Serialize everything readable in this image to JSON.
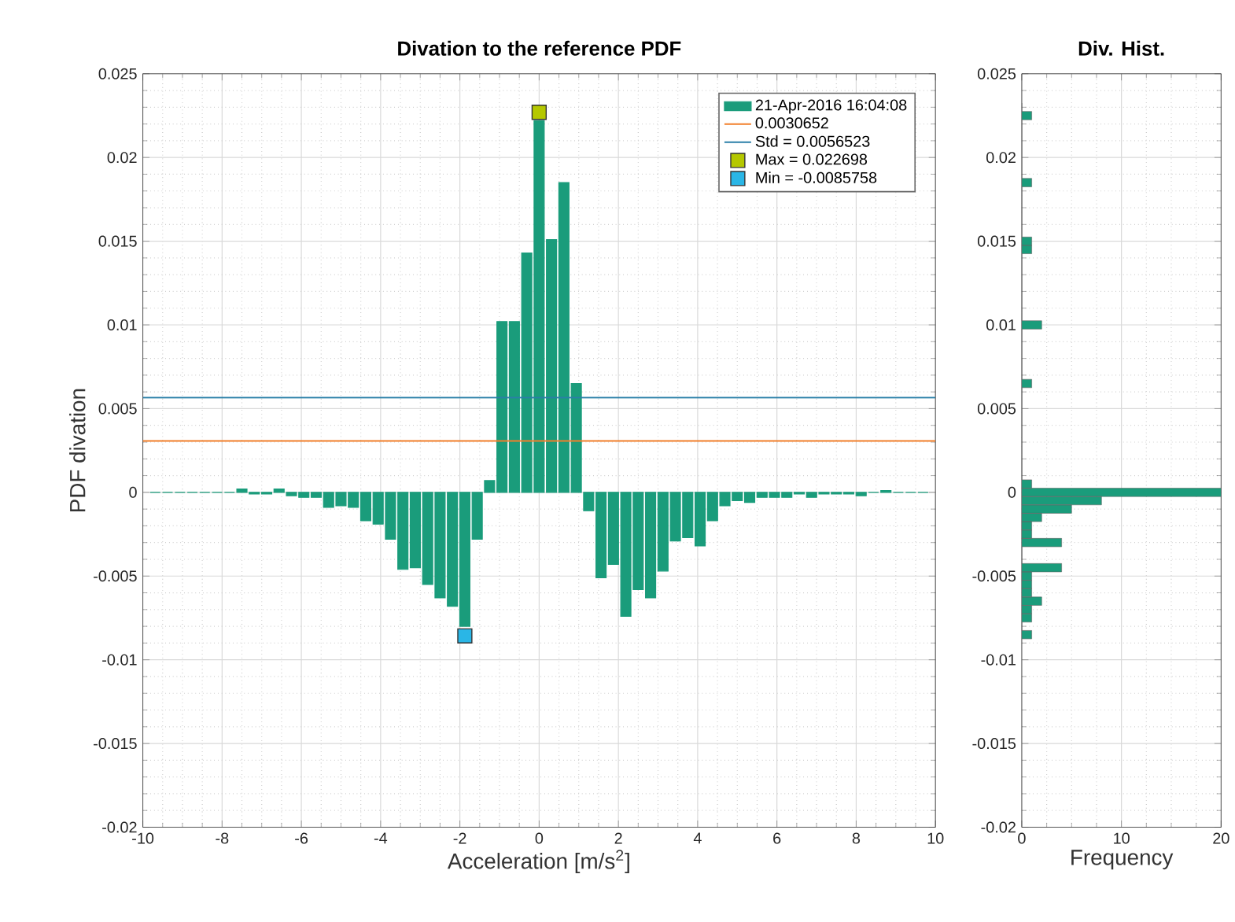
{
  "chart_data": [
    {
      "type": "bar",
      "title": "Divation to the reference PDF",
      "xlabel": "Acceleration [m/s$^{2}$]",
      "ylabel": "PDF divation",
      "xlim": [
        -10,
        10
      ],
      "ylim": [
        -0.02,
        0.025
      ],
      "xticks": [
        -10,
        -8,
        -6,
        -4,
        -2,
        0,
        2,
        4,
        6,
        8,
        10
      ],
      "yticks": [
        -0.02,
        -0.015,
        -0.01,
        -0.005,
        0,
        0.005,
        0.01,
        0.015,
        0.02,
        0.025
      ],
      "grid": true,
      "legend": "top right",
      "series": [
        {
          "name": "21-Apr-2016 16:04:08",
          "type": "bar",
          "color": "#1a9c7b",
          "x": [
            -9.6875,
            -9.375,
            -9.0625,
            -8.75,
            -8.4375,
            -8.125,
            -7.8125,
            -7.5,
            -7.1875,
            -6.875,
            -6.5625,
            -6.25,
            -5.9375,
            -5.625,
            -5.3125,
            -5,
            -4.6875,
            -4.375,
            -4.0625,
            -3.75,
            -3.4375,
            -3.125,
            -2.8125,
            -2.5,
            -2.1875,
            -1.875,
            -1.5625,
            -1.25,
            -0.9375,
            -0.625,
            -0.3125,
            0,
            0.3125,
            0.625,
            0.9375,
            1.25,
            1.5625,
            1.875,
            2.1875,
            2.5,
            2.8125,
            3.125,
            3.4375,
            3.75,
            4.0625,
            4.375,
            4.6875,
            5,
            5.3125,
            5.625,
            5.9375,
            6.25,
            6.5625,
            6.875,
            7.1875,
            7.5,
            7.8125,
            8.125,
            8.4375,
            8.75,
            9.0625,
            9.375,
            9.6875
          ],
          "values": [
            0,
            0,
            0,
            0,
            0,
            0,
            0,
            0.0002,
            -0.0001,
            -0.0001,
            0.0002,
            -0.0002,
            -0.0003,
            -0.0003,
            -0.0009,
            -0.0008,
            -0.0009,
            -0.0017,
            -0.0019,
            -0.0028,
            -0.0046,
            -0.0045,
            -0.0055,
            -0.0063,
            -0.0068,
            -0.008,
            -0.0028,
            0.0007,
            0.0102,
            0.0102,
            0.0143,
            0.0222,
            0.0151,
            0.0185,
            0.0065,
            -0.0011,
            -0.0051,
            -0.0043,
            -0.0074,
            -0.0058,
            -0.0063,
            -0.0047,
            -0.0029,
            -0.0027,
            -0.0032,
            -0.0017,
            -0.0008,
            -0.0005,
            -0.0006,
            -0.0003,
            -0.0003,
            -0.0003,
            -0.0001,
            -0.0003,
            -0.0001,
            -0.0001,
            -0.0001,
            -0.0002,
            0,
            0.0001,
            0,
            0,
            0
          ]
        },
        {
          "name": "0.0030652",
          "type": "line",
          "color": "#f27f2a",
          "x": [
            -10,
            10
          ],
          "values": [
            0.0030652,
            0.0030652
          ]
        },
        {
          "name": "Std = 0.0056523",
          "type": "line",
          "color": "#2a7fa8",
          "x": [
            -10,
            10
          ],
          "values": [
            0.0056523,
            0.0056523
          ]
        },
        {
          "name": "Max = 0.022698",
          "type": "scatter",
          "marker": "square",
          "color": "#b5c800",
          "x": [
            0
          ],
          "values": [
            0.022698
          ]
        },
        {
          "name": "Min = -0.0085758",
          "type": "scatter",
          "marker": "square",
          "color": "#2ab6e6",
          "x": [
            -1.875
          ],
          "values": [
            -0.0085758
          ]
        }
      ]
    },
    {
      "type": "histogram",
      "orientation": "horizontal",
      "title": "Div. Hist.",
      "xlabel": "Frequency",
      "color": "#1a9c7b",
      "xlim": [
        0,
        20
      ],
      "ylim": [
        -0.02,
        0.025
      ],
      "xticks": [
        0,
        10,
        20
      ],
      "yticks": [
        -0.02,
        -0.015,
        -0.01,
        -0.005,
        0,
        0.005,
        0.01,
        0.015,
        0.02,
        0.025
      ],
      "grid": true,
      "bins": [
        -0.00875,
        -0.00825,
        -0.00775,
        -0.00725,
        -0.00675,
        -0.00625,
        -0.00575,
        -0.00525,
        -0.00475,
        -0.00425,
        -0.00375,
        -0.00325,
        -0.00275,
        -0.00225,
        -0.00175,
        -0.00125,
        -0.00075,
        -0.00025,
        0.00025,
        0.00075,
        0.00125,
        0.00175,
        0.00225,
        0.00275,
        0.00325,
        0.00375,
        0.00425,
        0.00475,
        0.00525,
        0.00575,
        0.00625,
        0.00675,
        0.00725,
        0.00775,
        0.00825,
        0.00875,
        0.00925,
        0.00975,
        0.01025,
        0.01075,
        0.01125,
        0.01175,
        0.01225,
        0.01275,
        0.01325,
        0.01375,
        0.01425,
        0.01475,
        0.01525,
        0.01575,
        0.01625,
        0.01675,
        0.01725,
        0.01775,
        0.01825,
        0.01875,
        0.01925,
        0.01975,
        0.02025,
        0.02075,
        0.02125,
        0.02175,
        0.02225,
        0.02275,
        0.02325
      ],
      "values": [
        1,
        0,
        1,
        1,
        2,
        1,
        1,
        1,
        4,
        0,
        0,
        4,
        1,
        1,
        2,
        5,
        8,
        20,
        1,
        0,
        0,
        0,
        0,
        0,
        0,
        0,
        0,
        0,
        0,
        0,
        1,
        0,
        0,
        0,
        0,
        0,
        0,
        2,
        0,
        0,
        0,
        0,
        0,
        0,
        0,
        0,
        1,
        1,
        0,
        0,
        0,
        0,
        0,
        0,
        1,
        0,
        0,
        0,
        0,
        0,
        0,
        0,
        1,
        0
      ]
    }
  ]
}
